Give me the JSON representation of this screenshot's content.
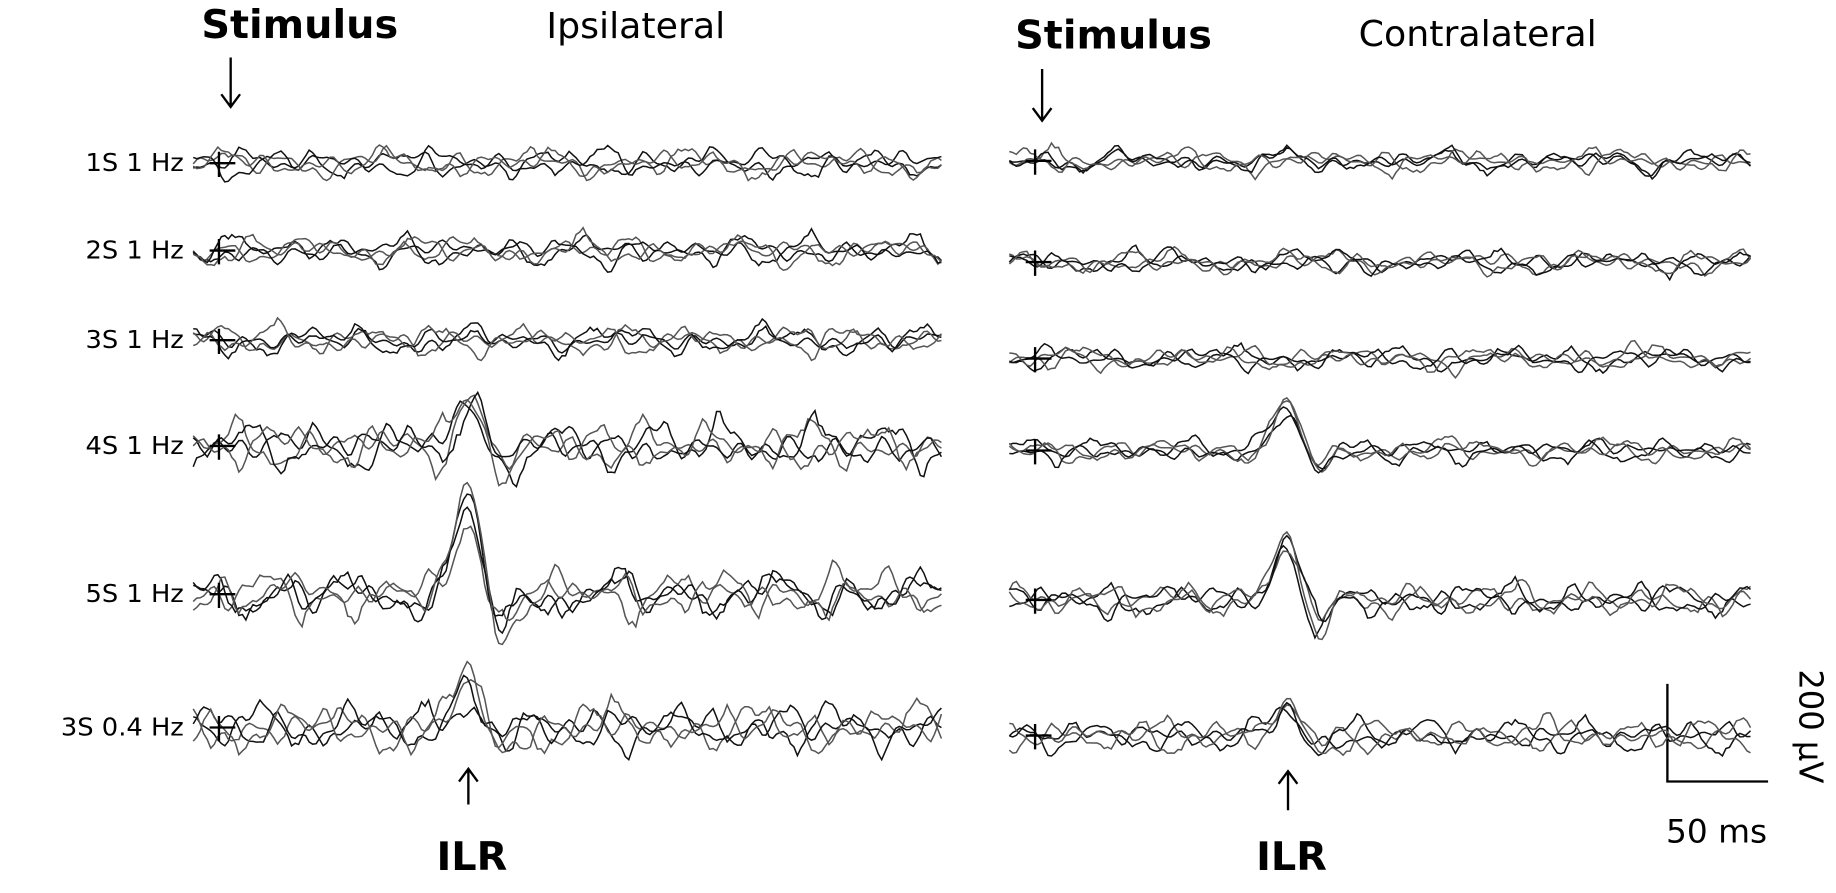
{
  "panels": [
    {
      "stimulus_label": "Stimulus",
      "title": "Ipsilateral",
      "response_label": "ILR"
    },
    {
      "stimulus_label": "Stimulus",
      "title": "Contralateral",
      "response_label": "ILR"
    }
  ],
  "rows": [
    "1S 1 Hz",
    "2S 1 Hz",
    "3S 1 Hz",
    "4S 1 Hz",
    "5S 1 Hz",
    "3S 0.4 Hz"
  ],
  "scale_bar": {
    "amplitude": "200 µV",
    "time": "50 ms"
  }
}
